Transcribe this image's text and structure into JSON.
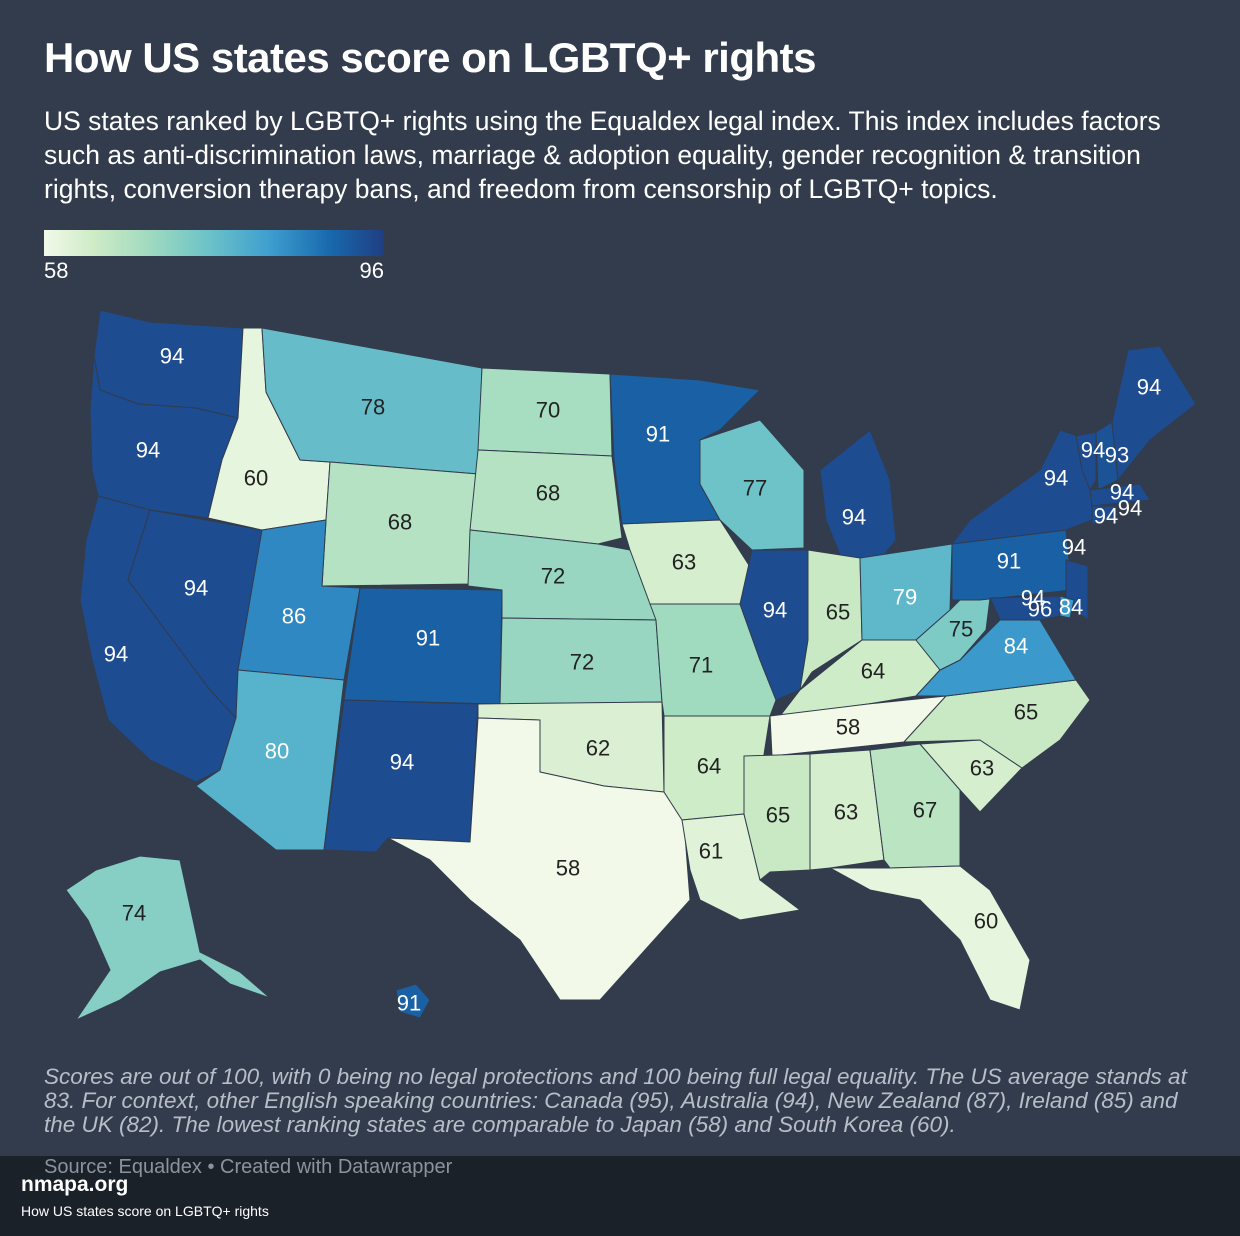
{
  "header": {
    "title": "How US states score on LGBTQ+ rights",
    "subtitle": "US states ranked by LGBTQ+ rights using the Equaldex legal index. This index includes factors such as anti-discrimination laws, marriage & adoption equality, gender recognition & transition rights, conversion therapy bans, and freedom from censorship of LGBTQ+ topics."
  },
  "legend": {
    "min": "58",
    "max": "96"
  },
  "colors": {
    "background": "#323c4c",
    "scale": [
      "#f2f9e9",
      "#cdebc6",
      "#a3dbbf",
      "#6dc3c8",
      "#3f9fcf",
      "#1869ad",
      "#203e82"
    ]
  },
  "map": {
    "states": [
      {
        "id": "WA",
        "score": 94
      },
      {
        "id": "OR",
        "score": 94
      },
      {
        "id": "CA",
        "score": 94
      },
      {
        "id": "NV",
        "score": 94
      },
      {
        "id": "ID",
        "score": 60
      },
      {
        "id": "MT",
        "score": 78
      },
      {
        "id": "WY",
        "score": 68
      },
      {
        "id": "UT",
        "score": 86
      },
      {
        "id": "AZ",
        "score": 80
      },
      {
        "id": "CO",
        "score": 91
      },
      {
        "id": "NM",
        "score": 94
      },
      {
        "id": "ND",
        "score": 70
      },
      {
        "id": "SD",
        "score": 68
      },
      {
        "id": "NE",
        "score": 72
      },
      {
        "id": "KS",
        "score": 72
      },
      {
        "id": "OK",
        "score": 62
      },
      {
        "id": "TX",
        "score": 58
      },
      {
        "id": "MN",
        "score": 91
      },
      {
        "id": "IA",
        "score": 63
      },
      {
        "id": "MO",
        "score": 71
      },
      {
        "id": "AR",
        "score": 64
      },
      {
        "id": "LA",
        "score": 61
      },
      {
        "id": "WI",
        "score": 77
      },
      {
        "id": "IL",
        "score": 94
      },
      {
        "id": "MI",
        "score": 94
      },
      {
        "id": "IN",
        "score": 65
      },
      {
        "id": "OH",
        "score": 79
      },
      {
        "id": "KY",
        "score": 64
      },
      {
        "id": "TN",
        "score": 58
      },
      {
        "id": "MS",
        "score": 65
      },
      {
        "id": "AL",
        "score": 63
      },
      {
        "id": "GA",
        "score": 67
      },
      {
        "id": "FL",
        "score": 60
      },
      {
        "id": "SC",
        "score": 63
      },
      {
        "id": "NC",
        "score": 65
      },
      {
        "id": "VA",
        "score": 84
      },
      {
        "id": "WV",
        "score": 75
      },
      {
        "id": "PA",
        "score": 91
      },
      {
        "id": "NY",
        "score": 94
      },
      {
        "id": "VT",
        "score": 94
      },
      {
        "id": "NH",
        "score": 93
      },
      {
        "id": "ME",
        "score": 94
      },
      {
        "id": "MA",
        "score": 94
      },
      {
        "id": "RI",
        "score": 94
      },
      {
        "id": "CT",
        "score": 94
      },
      {
        "id": "NJ",
        "score": 94
      },
      {
        "id": "DE",
        "score": 84
      },
      {
        "id": "MD",
        "score": 94
      },
      {
        "id": "DC",
        "score": 96
      },
      {
        "id": "AK",
        "score": 74
      },
      {
        "id": "HI",
        "score": 91
      }
    ]
  },
  "notes": "Scores are out of 100, with 0 being no legal protections and 100 being full legal equality. The US average stands at 83. For context, other English speaking countries: Canada (95), Australia (94), New Zealand (87), Ireland (85) and the UK (82). The lowest ranking states are comparable to Japan (58) and South Korea (60).",
  "source": "Source: Equaldex • Created with Datawrapper",
  "footer": {
    "brand": "nmapa.org",
    "caption": "How US states score on LGBTQ+ rights"
  }
}
